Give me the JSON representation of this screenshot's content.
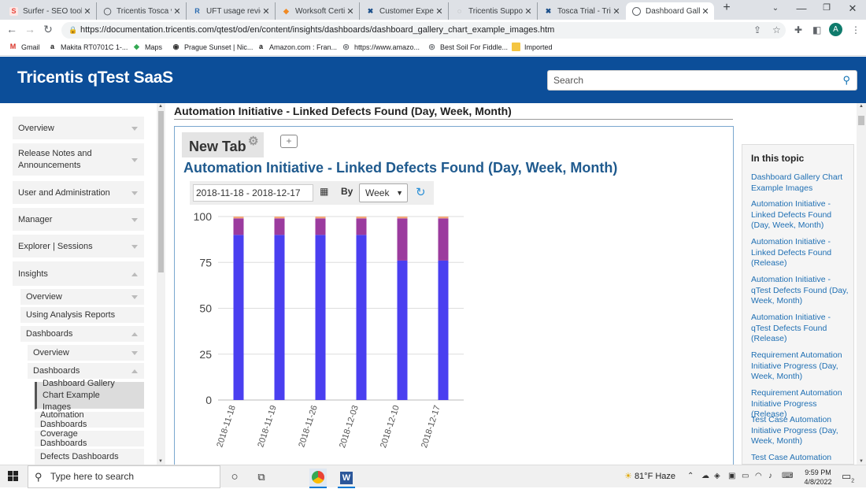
{
  "browser": {
    "tabs": [
      {
        "title": "Surfer - SEO tool f",
        "icon": "surfer-icon",
        "color": "#e8453c"
      },
      {
        "title": "Tricentis Tosca vs",
        "icon": "chat-icon",
        "color": "#5f6368"
      },
      {
        "title": "UFT usage review",
        "icon": "tr-icon",
        "color": "#2b6cb0"
      },
      {
        "title": "Worksoft Certify",
        "icon": "diamond-icon",
        "color": "#f08a24"
      },
      {
        "title": "Customer Experie",
        "icon": "tricentis-x-icon",
        "color": "#1b4f8a"
      },
      {
        "title": "Tricentis Support",
        "icon": "spinner-icon",
        "color": "#888888"
      },
      {
        "title": "Tosca Trial - Tricen",
        "icon": "tricentis-x-icon",
        "color": "#1b4f8a"
      },
      {
        "title": "Dashboard Galler",
        "icon": "globe-icon",
        "color": "#5f6368"
      }
    ],
    "url": "https://documentation.tricentis.com/qtest/od/en/content/insights/dashboards/dashboard_gallery_chart_example_images.htm",
    "profile_initial": "A",
    "bookmarks": [
      "Gmail",
      "Makita RT0701C 1-...",
      "Maps",
      "Prague Sunset | Nic...",
      "Amazon.com : Fran...",
      "https://www.amazo...",
      "Best Soil For Fiddle...",
      "Imported"
    ]
  },
  "site": {
    "title": "Tricentis qTest SaaS",
    "search_placeholder": "Search"
  },
  "leftnav": {
    "items": [
      {
        "label": "Overview"
      },
      {
        "label": "Release Notes and Announcements"
      },
      {
        "label": "User and Administration"
      },
      {
        "label": "Manager"
      },
      {
        "label": "Explorer | Sessions"
      },
      {
        "label": "Insights"
      },
      {
        "label": "Overview"
      },
      {
        "label": "Using Analysis Reports"
      },
      {
        "label": "Dashboards"
      },
      {
        "label": "Overview"
      },
      {
        "label": "Dashboards"
      },
      {
        "label": "Dashboard Gallery Chart Example Images"
      },
      {
        "label": "Automation Dashboards"
      },
      {
        "label": "Coverage Dashboards"
      },
      {
        "label": "Defects Dashboards"
      }
    ]
  },
  "main": {
    "page_title": "Automation Initiative - Linked Defects Found (Day, Week, Month)",
    "tab_label": "New Tab",
    "chart_title": "Automation Initiative - Linked Defects Found (Day, Week, Month)",
    "date_range": "2018-11-18 - 2018-12-17",
    "by_label": "By",
    "period": "Week"
  },
  "chart_data": {
    "type": "bar",
    "stacked": true,
    "categories": [
      "2018-11-18",
      "2018-11-19",
      "2018-11-26",
      "2018-12-03",
      "2018-12-10",
      "2018-12-17"
    ],
    "series": [
      {
        "color": "#4a3ff0",
        "values": [
          90,
          90,
          90,
          90,
          76,
          76
        ]
      },
      {
        "color": "#9b3b9e",
        "values": [
          9,
          9,
          9,
          9,
          23,
          23
        ]
      },
      {
        "color": "#f3a87a",
        "values": [
          1,
          1,
          1,
          1,
          1,
          1
        ]
      }
    ],
    "yticks": [
      0,
      25,
      50,
      75,
      100
    ],
    "ylim": [
      0,
      100
    ],
    "grid": true
  },
  "right_panel": {
    "title": "In this topic",
    "links": [
      "Dashboard Gallery Chart Example Images",
      "Automation Initiative - Linked Defects Found (Day, Week, Month)",
      "Automation Initiative - Linked Defects Found (Release)",
      "Automation Initiative - qTest Defects Found (Day, Week, Month)",
      "Automation Initiative - qTest Defects Found (Release)",
      "Requirement Automation Initiative Progress (Day, Week, Month)",
      "Requirement Automation Initiative Progress (Release)",
      "Test Case Automation Initiative Progress (Day, Week, Month)",
      "Test Case Automation"
    ]
  },
  "taskbar": {
    "search_placeholder": "Type here to search",
    "weather": "81°F  Haze",
    "time": "9:59 PM",
    "date": "4/8/2022",
    "notification_count": "2"
  }
}
